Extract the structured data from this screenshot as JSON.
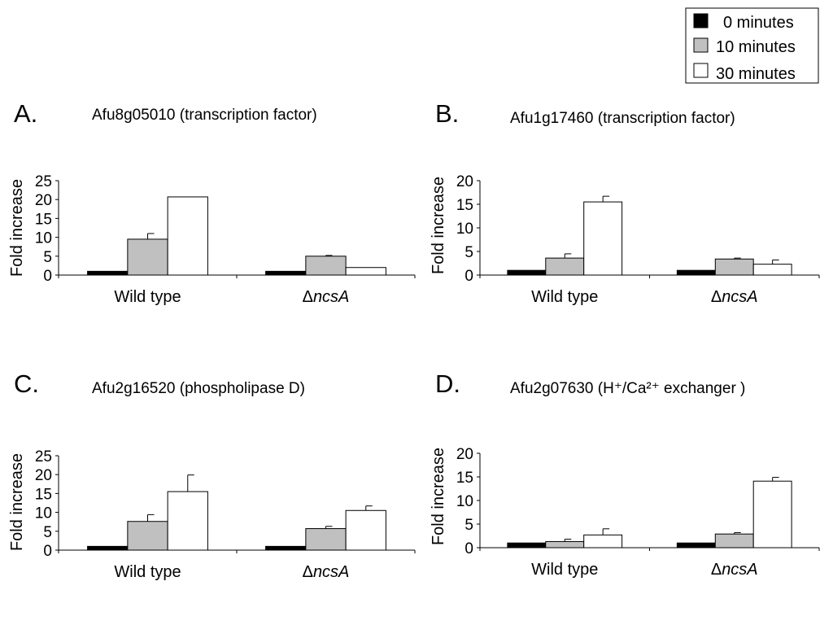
{
  "legend": {
    "items": [
      {
        "label": "0 minutes",
        "color": "#000000"
      },
      {
        "label": "10 minutes",
        "color": "#c0c0c0"
      },
      {
        "label": "30 minutes",
        "color": "#ffffff"
      }
    ]
  },
  "chart_data": [
    {
      "type": "bar",
      "panel": "A.",
      "title": "Afu8g05010 (transcription factor)",
      "ylabel": "Fold increase",
      "categories": [
        "Wild type",
        "ΔncsA"
      ],
      "ylim": [
        0,
        25
      ],
      "yticks": [
        0,
        5,
        10,
        15,
        20,
        25
      ],
      "series": [
        {
          "name": "0 minutes",
          "values": [
            1.0,
            1.0
          ],
          "errors": [
            0,
            0
          ]
        },
        {
          "name": "10 minutes",
          "values": [
            9.5,
            5.0
          ],
          "errors": [
            1.5,
            0.2
          ]
        },
        {
          "name": "30 minutes",
          "values": [
            20.7,
            2.0
          ],
          "errors": [
            0,
            0
          ]
        }
      ]
    },
    {
      "type": "bar",
      "panel": "B.",
      "title": "Afu1g17460 (transcription factor)",
      "ylabel": "Fold increase",
      "categories": [
        "Wild type",
        "ΔncsA"
      ],
      "ylim": [
        0,
        20
      ],
      "yticks": [
        0,
        5,
        10,
        15,
        20
      ],
      "series": [
        {
          "name": "0 minutes",
          "values": [
            1.0,
            1.0
          ],
          "errors": [
            0,
            0
          ]
        },
        {
          "name": "10 minutes",
          "values": [
            3.6,
            3.4
          ],
          "errors": [
            0.9,
            0.2
          ]
        },
        {
          "name": "30 minutes",
          "values": [
            15.5,
            2.3
          ],
          "errors": [
            1.2,
            0.9
          ]
        }
      ]
    },
    {
      "type": "bar",
      "panel": "C.",
      "title": "Afu2g16520 (phospholipase D)",
      "ylabel": "Fold increase",
      "categories": [
        "Wild type",
        "ΔncsA"
      ],
      "ylim": [
        0,
        25
      ],
      "yticks": [
        0,
        5,
        10,
        15,
        20,
        25
      ],
      "series": [
        {
          "name": "0 minutes",
          "values": [
            1.0,
            1.0
          ],
          "errors": [
            0,
            0
          ]
        },
        {
          "name": "10 minutes",
          "values": [
            7.6,
            5.7
          ],
          "errors": [
            1.8,
            0.6
          ]
        },
        {
          "name": "30 minutes",
          "values": [
            15.5,
            10.5
          ],
          "errors": [
            4.4,
            1.2
          ]
        }
      ]
    },
    {
      "type": "bar",
      "panel": "D.",
      "title": "Afu2g07630 (H⁺/Ca²⁺ exchanger )",
      "ylabel": "Fold increase",
      "categories": [
        "Wild type",
        "ΔncsA"
      ],
      "ylim": [
        0,
        20
      ],
      "yticks": [
        0,
        5,
        10,
        15,
        20
      ],
      "series": [
        {
          "name": "0 minutes",
          "values": [
            1.0,
            1.0
          ],
          "errors": [
            0,
            0
          ]
        },
        {
          "name": "10 minutes",
          "values": [
            1.3,
            2.9
          ],
          "errors": [
            0.5,
            0.3
          ]
        },
        {
          "name": "30 minutes",
          "values": [
            2.7,
            14.1
          ],
          "errors": [
            1.3,
            0.8
          ]
        }
      ]
    }
  ]
}
